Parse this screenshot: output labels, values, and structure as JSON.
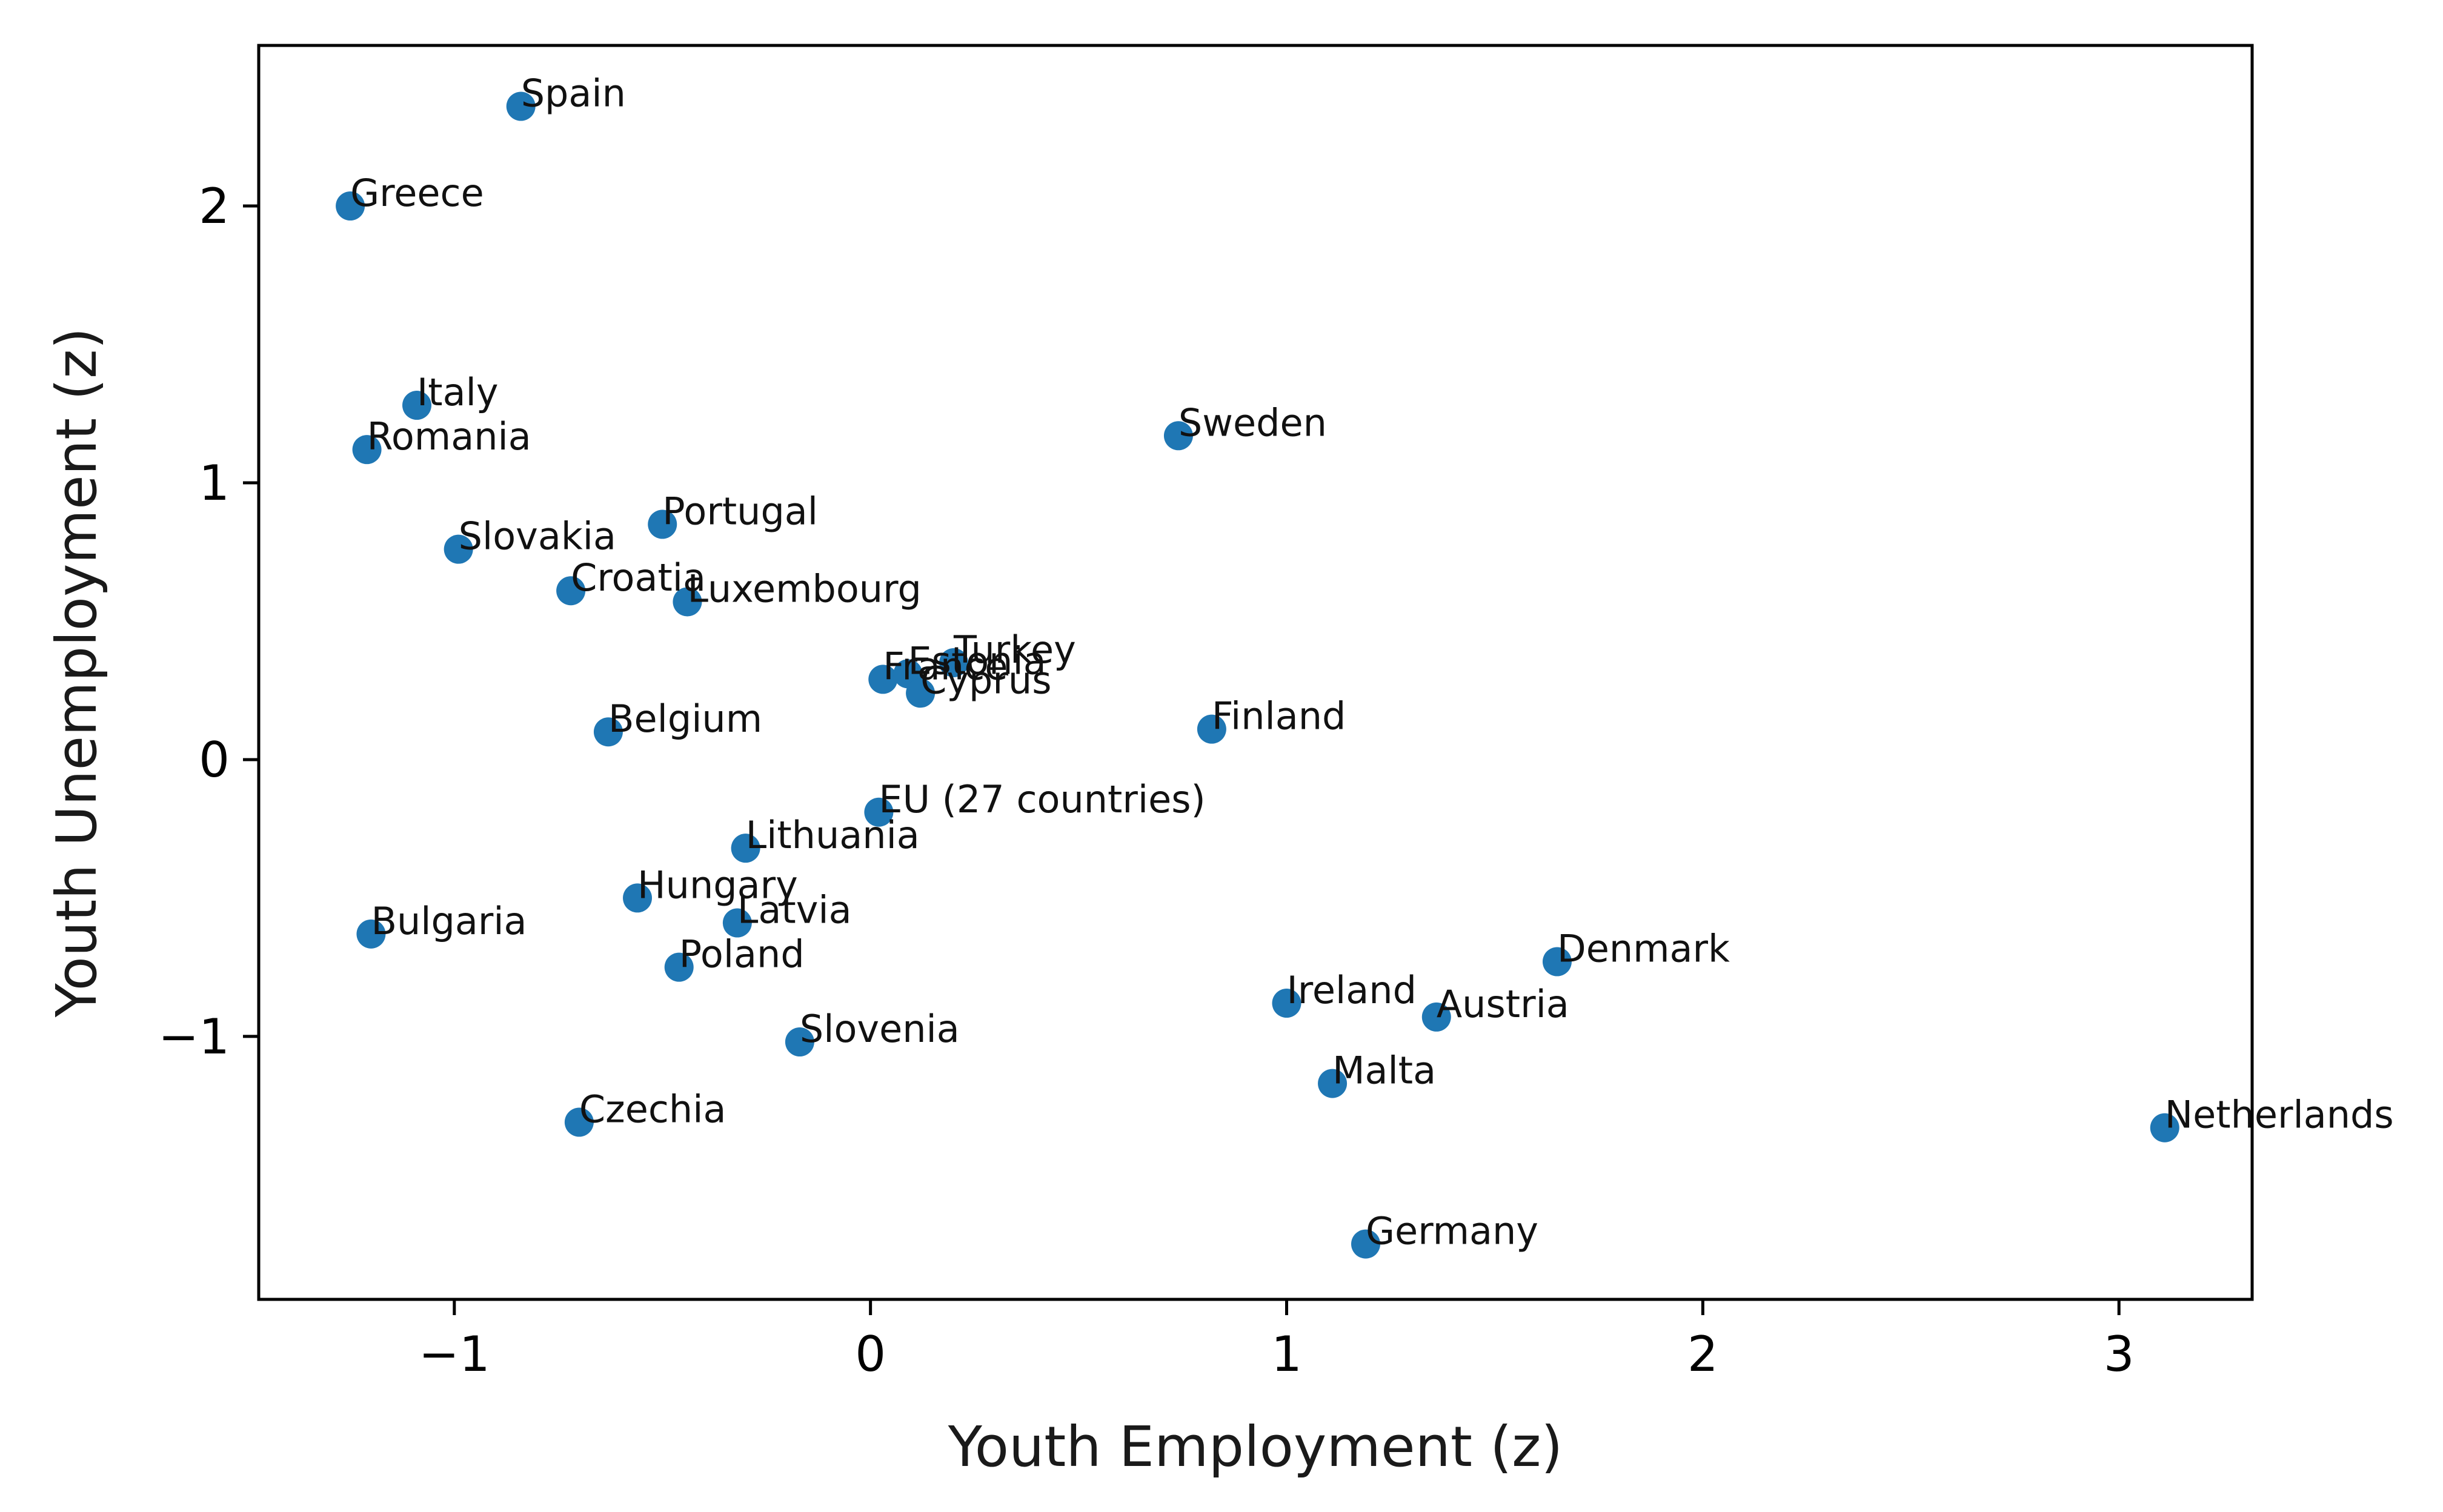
{
  "chart_data": {
    "type": "scatter",
    "title": "",
    "xlabel": "Youth Employment (z)",
    "ylabel": "Youth Unemployment (z)",
    "xlim": [
      -1.47,
      3.32
    ],
    "ylim": [
      -1.95,
      2.58
    ],
    "grid": false,
    "marker_color": "#1f77b4",
    "x_ticks": [
      {
        "value": -1,
        "label": "−1"
      },
      {
        "value": 0,
        "label": "0"
      },
      {
        "value": 1,
        "label": "1"
      },
      {
        "value": 2,
        "label": "2"
      },
      {
        "value": 3,
        "label": "3"
      }
    ],
    "y_ticks": [
      {
        "value": -1,
        "label": "−1"
      },
      {
        "value": 0,
        "label": "0"
      },
      {
        "value": 1,
        "label": "1"
      },
      {
        "value": 2,
        "label": "2"
      }
    ],
    "points": [
      {
        "label": "Spain",
        "x": -0.84,
        "y": 2.36
      },
      {
        "label": "Greece",
        "x": -1.25,
        "y": 2.0
      },
      {
        "label": "Italy",
        "x": -1.09,
        "y": 1.28
      },
      {
        "label": "Romania",
        "x": -1.21,
        "y": 1.12
      },
      {
        "label": "Sweden",
        "x": 0.74,
        "y": 1.17
      },
      {
        "label": "Portugal",
        "x": -0.5,
        "y": 0.85
      },
      {
        "label": "Slovakia",
        "x": -0.99,
        "y": 0.76
      },
      {
        "label": "Croatia",
        "x": -0.72,
        "y": 0.61
      },
      {
        "label": "Luxembourg",
        "x": -0.44,
        "y": 0.57
      },
      {
        "label": "France",
        "x": 0.03,
        "y": 0.29
      },
      {
        "label": "Estonia",
        "x": 0.09,
        "y": 0.31
      },
      {
        "label": "Turkey",
        "x": 0.2,
        "y": 0.35
      },
      {
        "label": "Cyprus",
        "x": 0.12,
        "y": 0.24
      },
      {
        "label": "Finland",
        "x": 0.82,
        "y": 0.11
      },
      {
        "label": "Belgium",
        "x": -0.63,
        "y": 0.1
      },
      {
        "label": "EU (27 countries)",
        "x": 0.02,
        "y": -0.19
      },
      {
        "label": "Lithuania",
        "x": -0.3,
        "y": -0.32
      },
      {
        "label": "Hungary",
        "x": -0.56,
        "y": -0.5
      },
      {
        "label": "Latvia",
        "x": -0.32,
        "y": -0.59
      },
      {
        "label": "Bulgaria",
        "x": -1.2,
        "y": -0.63
      },
      {
        "label": "Poland",
        "x": -0.46,
        "y": -0.75
      },
      {
        "label": "Denmark",
        "x": 1.65,
        "y": -0.73
      },
      {
        "label": "Ireland",
        "x": 1.0,
        "y": -0.88
      },
      {
        "label": "Austria",
        "x": 1.36,
        "y": -0.93
      },
      {
        "label": "Slovenia",
        "x": -0.17,
        "y": -1.02
      },
      {
        "label": "Malta",
        "x": 1.11,
        "y": -1.17
      },
      {
        "label": "Czechia",
        "x": -0.7,
        "y": -1.31
      },
      {
        "label": "Netherlands",
        "x": 3.11,
        "y": -1.33
      },
      {
        "label": "Germany",
        "x": 1.19,
        "y": -1.75
      }
    ]
  }
}
